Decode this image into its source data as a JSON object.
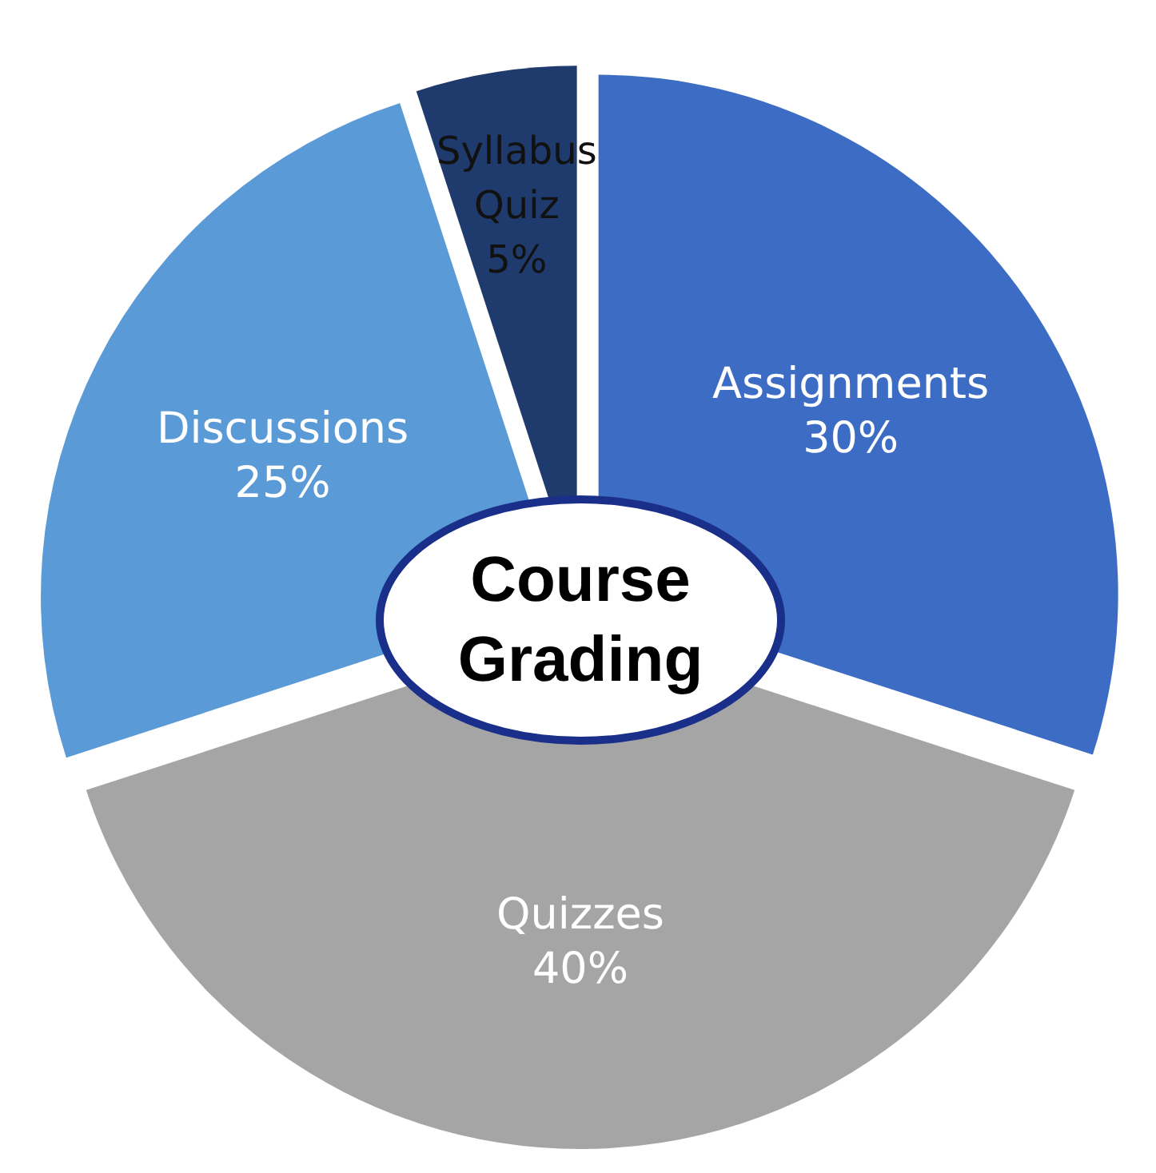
{
  "chart_data": {
    "type": "pie",
    "title": "Course Grading",
    "categories": [
      "Assignments",
      "Quizzes",
      "Discussions",
      "Syllabus Quiz"
    ],
    "values": [
      30,
      40,
      25,
      5
    ],
    "value_labels": [
      "30%",
      "40%",
      "25%",
      "5%"
    ],
    "colors": [
      "#3d6cc4",
      "#a5a5a5",
      "#5a9ad6",
      "#1f3a6c"
    ]
  }
}
